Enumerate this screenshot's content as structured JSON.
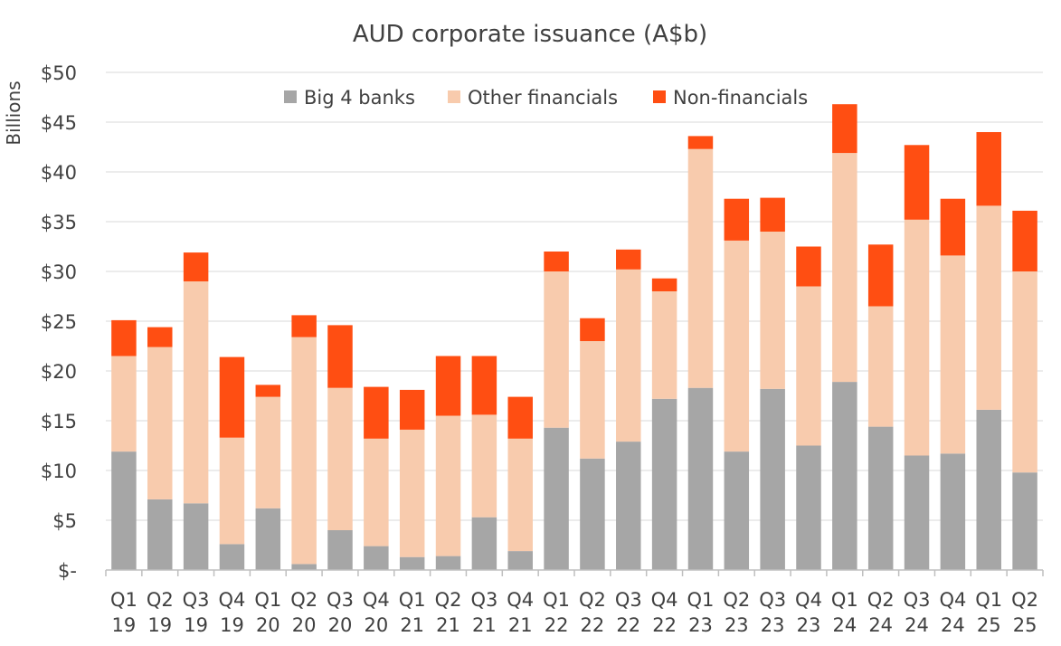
{
  "chart_data": {
    "type": "bar",
    "stacked": true,
    "title": "AUD corporate issuance (A$b)",
    "ylabel": "Billions",
    "xlabel": "",
    "ylim": [
      0,
      50
    ],
    "ytick_step": 5,
    "ytick_labels": [
      "$-",
      "$5",
      "$10",
      "$15",
      "$20",
      "$25",
      "$30",
      "$35",
      "$40",
      "$45",
      "$50"
    ],
    "grid": "horizontal",
    "legend_position": "top",
    "categories": [
      [
        "Q1",
        "19"
      ],
      [
        "Q2",
        "19"
      ],
      [
        "Q3",
        "19"
      ],
      [
        "Q4",
        "19"
      ],
      [
        "Q1",
        "20"
      ],
      [
        "Q2",
        "20"
      ],
      [
        "Q3",
        "20"
      ],
      [
        "Q4",
        "20"
      ],
      [
        "Q1",
        "21"
      ],
      [
        "Q2",
        "21"
      ],
      [
        "Q3",
        "21"
      ],
      [
        "Q4",
        "21"
      ],
      [
        "Q1",
        "22"
      ],
      [
        "Q2",
        "22"
      ],
      [
        "Q3",
        "22"
      ],
      [
        "Q4",
        "22"
      ],
      [
        "Q1",
        "23"
      ],
      [
        "Q2",
        "23"
      ],
      [
        "Q3",
        "23"
      ],
      [
        "Q4",
        "23"
      ],
      [
        "Q1",
        "24"
      ],
      [
        "Q2",
        "24"
      ],
      [
        "Q3",
        "24"
      ],
      [
        "Q4",
        "24"
      ],
      [
        "Q1",
        "25"
      ],
      [
        "Q2",
        "25"
      ]
    ],
    "series": [
      {
        "name": "Big 4 banks",
        "color": "#a6a6a6",
        "values": [
          11.9,
          7.1,
          6.7,
          2.6,
          6.2,
          0.6,
          4.0,
          2.4,
          1.3,
          1.4,
          5.3,
          1.9,
          14.3,
          11.2,
          12.9,
          17.2,
          18.3,
          11.9,
          18.2,
          12.5,
          18.9,
          14.4,
          11.5,
          11.7,
          16.1,
          9.8
        ]
      },
      {
        "name": "Other financials",
        "color": "#f8cbad",
        "values": [
          9.6,
          15.3,
          22.3,
          10.7,
          11.2,
          22.8,
          14.3,
          10.8,
          12.8,
          14.1,
          10.3,
          11.3,
          15.7,
          11.8,
          17.3,
          10.8,
          24.0,
          21.2,
          15.8,
          16.0,
          23.0,
          12.1,
          23.7,
          19.9,
          20.5,
          20.2
        ]
      },
      {
        "name": "Non-financials",
        "color": "#ff4e12",
        "values": [
          3.6,
          2.0,
          2.9,
          8.1,
          1.2,
          2.2,
          6.3,
          5.2,
          4.0,
          6.0,
          5.9,
          4.2,
          2.0,
          2.3,
          2.0,
          1.3,
          1.3,
          4.2,
          3.4,
          4.0,
          4.9,
          6.2,
          7.5,
          5.7,
          7.4,
          6.1
        ]
      }
    ]
  }
}
